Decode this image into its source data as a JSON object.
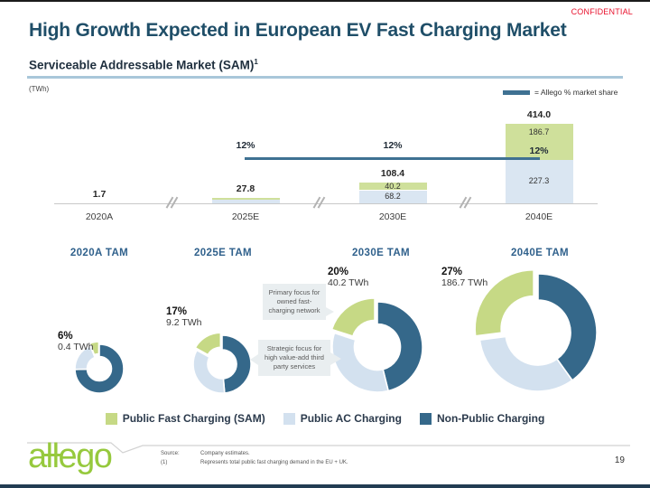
{
  "confidential": "CONFIDENTIAL",
  "title": "High Growth Expected in European EV Fast Charging Market",
  "subtitle": "Serviceable Addressable Market (SAM)",
  "subtitle_footnote": "1",
  "units_label": "(TWh)",
  "share_legend_label": "= Allego % market share",
  "colors": {
    "title": "#1f4e68",
    "confidential_red": "#e8112d",
    "sam_green": "#c6d985",
    "sam_green_bar": "#cfe09b",
    "ac_blue": "#d3e1ef",
    "ac_blue_bar": "#dae6f2",
    "non_public_blue": "#35688a",
    "allego_line": "#3f7192",
    "tam_title_blue": "#30618c",
    "logo_green": "#96c93d",
    "underline_blue": "#a9c7da"
  },
  "chart_data": [
    {
      "type": "bar",
      "title": "Serviceable Addressable Market (SAM)",
      "units": "TWh",
      "categories": [
        "2020A",
        "2025E",
        "2030E",
        "2040E"
      ],
      "series": [
        {
          "name": "Public Fast Charging (SAM)",
          "values": [
            0.4,
            9.2,
            40.2,
            186.7
          ]
        },
        {
          "name": "Public AC Charging",
          "values": [
            1.3,
            18.6,
            68.2,
            227.3
          ]
        }
      ],
      "totals": [
        1.7,
        27.8,
        108.4,
        414.0
      ],
      "total_labels": [
        "1.7",
        "27.8",
        "108.4",
        "414.0"
      ],
      "segment_labels": [
        [
          "",
          ""
        ],
        [
          "",
          ""
        ],
        [
          "40.2",
          "68.2"
        ],
        [
          "186.7",
          "227.3"
        ]
      ],
      "allego_share": {
        "label": "12%",
        "above_line_categories": [
          "2025E",
          "2030E"
        ],
        "inline_in_category": "2040E"
      },
      "axis_breaks": true,
      "ylim": [
        0,
        414
      ]
    },
    {
      "type": "pie",
      "subtype": "donut",
      "donuts": [
        {
          "title": "2020A TAM",
          "sam_pct": "6%",
          "sam_twh": "0.4 TWh",
          "slices": [
            {
              "name": "Non-Public Charging",
              "pct": 74.5
            },
            {
              "name": "Public AC Charging",
              "pct": 19.5
            },
            {
              "name": "Public Fast Charging (SAM)",
              "pct": 6
            }
          ]
        },
        {
          "title": "2025E TAM",
          "sam_pct": "17%",
          "sam_twh": "9.2 TWh",
          "slices": [
            {
              "name": "Non-Public Charging",
              "pct": 48.6
            },
            {
              "name": "Public AC Charging",
              "pct": 34.4
            },
            {
              "name": "Public Fast Charging (SAM)",
              "pct": 17
            }
          ]
        },
        {
          "title": "2030E TAM",
          "sam_pct": "20%",
          "sam_twh": "40.2 TWh",
          "slices": [
            {
              "name": "Non-Public Charging",
              "pct": 46.1
            },
            {
              "name": "Public AC Charging",
              "pct": 33.9
            },
            {
              "name": "Public Fast Charging (SAM)",
              "pct": 20
            }
          ]
        },
        {
          "title": "2040E TAM",
          "sam_pct": "27%",
          "sam_twh": "186.7 TWh",
          "slices": [
            {
              "name": "Non-Public Charging",
              "pct": 40.1
            },
            {
              "name": "Public AC Charging",
              "pct": 32.9
            },
            {
              "name": "Public Fast Charging (SAM)",
              "pct": 27
            }
          ]
        }
      ]
    }
  ],
  "callouts": [
    {
      "text": "Primary focus for owned fast-charging network"
    },
    {
      "text": "Strategic focus for high value-add third party services"
    }
  ],
  "legend": {
    "items": [
      {
        "label": "Public Fast Charging (SAM)",
        "color": "#c6d985"
      },
      {
        "label": "Public AC Charging",
        "color": "#d3e1ef"
      },
      {
        "label": "Non-Public Charging",
        "color": "#35688a"
      }
    ]
  },
  "footer": {
    "logo": {
      "p1": "a",
      "p2": "ll",
      "p3": "ego"
    },
    "source_label": "Source:",
    "source_text": "Company estimates.",
    "note_label": "(1)",
    "note_text": "Represents total public fast charging demand in the EU + UK.",
    "page_number": "19"
  }
}
